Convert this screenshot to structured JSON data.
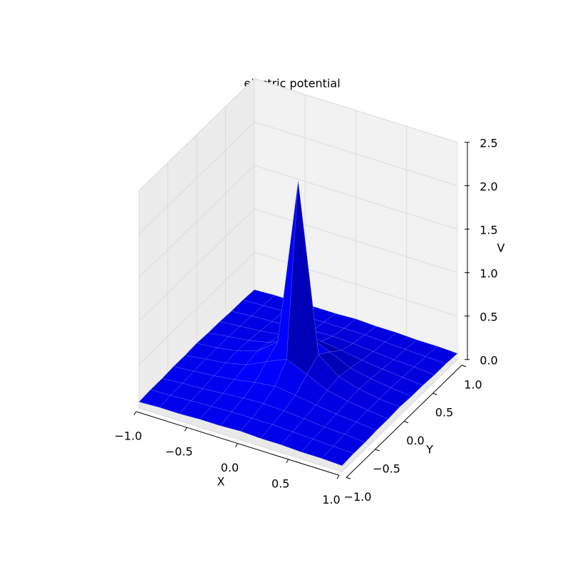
{
  "chart_data": {
    "type": "surface",
    "title": "electric potential",
    "x_label": "X",
    "y_label": "Y",
    "z_label": "V",
    "x": [
      -1.0,
      -0.8,
      -0.6,
      -0.4,
      -0.2,
      0.0,
      0.2,
      0.4,
      0.6,
      0.8,
      1.0
    ],
    "y": [
      -1.0,
      -0.8,
      -0.6,
      -0.4,
      -0.2,
      0.0,
      0.2,
      0.4,
      0.6,
      0.8,
      1.0
    ],
    "z": [
      [
        0.07,
        0.08,
        0.08,
        0.09,
        0.09,
        0.1,
        0.09,
        0.09,
        0.08,
        0.08,
        0.07
      ],
      [
        0.08,
        0.09,
        0.1,
        0.11,
        0.12,
        0.12,
        0.12,
        0.11,
        0.1,
        0.09,
        0.08
      ],
      [
        0.08,
        0.1,
        0.11,
        0.13,
        0.15,
        0.16,
        0.15,
        0.13,
        0.11,
        0.1,
        0.08
      ],
      [
        0.09,
        0.11,
        0.13,
        0.16,
        0.2,
        0.23,
        0.2,
        0.16,
        0.13,
        0.11,
        0.09
      ],
      [
        0.09,
        0.12,
        0.15,
        0.2,
        0.31,
        0.41,
        0.31,
        0.2,
        0.15,
        0.12,
        0.09
      ],
      [
        0.1,
        0.12,
        0.16,
        0.23,
        0.41,
        2.33,
        0.41,
        0.23,
        0.16,
        0.12,
        0.1
      ],
      [
        0.09,
        0.12,
        0.15,
        0.2,
        0.31,
        0.41,
        0.31,
        0.2,
        0.15,
        0.12,
        0.09
      ],
      [
        0.09,
        0.11,
        0.13,
        0.16,
        0.2,
        0.23,
        0.2,
        0.16,
        0.13,
        0.11,
        0.09
      ],
      [
        0.08,
        0.1,
        0.11,
        0.13,
        0.15,
        0.16,
        0.15,
        0.13,
        0.11,
        0.1,
        0.08
      ],
      [
        0.08,
        0.09,
        0.1,
        0.11,
        0.12,
        0.12,
        0.12,
        0.11,
        0.1,
        0.09,
        0.08
      ],
      [
        0.07,
        0.08,
        0.08,
        0.09,
        0.09,
        0.1,
        0.09,
        0.09,
        0.08,
        0.08,
        0.07
      ]
    ],
    "color": "#0000ff",
    "xlim": [
      -1,
      1
    ],
    "ylim": [
      -1,
      1
    ],
    "zlim": [
      0,
      2.5
    ],
    "xticks": [
      {
        "value": -1,
        "label": "−1.0"
      },
      {
        "value": -0.5,
        "label": "−0.5"
      },
      {
        "value": 0,
        "label": "0.0"
      },
      0.5,
      {
        "value": 1,
        "label": "1.0"
      }
    ],
    "yticks": [
      {
        "value": -1,
        "label": "−1.0"
      },
      {
        "value": -0.5,
        "label": "−0.5"
      },
      {
        "value": 0,
        "label": "0.0"
      },
      0.5,
      {
        "value": 1,
        "label": "1.0"
      }
    ],
    "zticks": [
      {
        "value": 0,
        "label": "0.0"
      },
      0.5,
      {
        "value": 1,
        "label": "1.0"
      },
      1.5,
      {
        "value": 2,
        "label": "2.0"
      },
      2.5
    ],
    "grid": true
  }
}
